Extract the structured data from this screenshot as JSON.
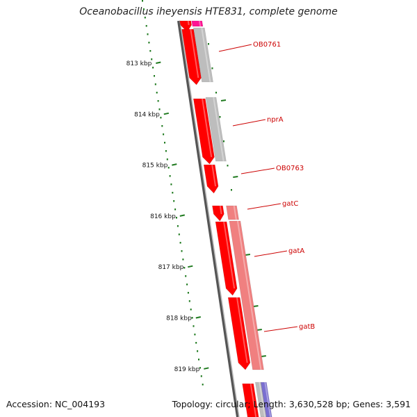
{
  "title": "Oceanobacillus iheyensis HTE831, complete genome",
  "footer": {
    "accession": "Accession: NC_004193",
    "summary": "Topology: circular; Length: 3,630,528 bp; Genes: 3,591"
  },
  "colors": {
    "forward_gene": "#ff0000",
    "forward_gene_dark": "#c00000",
    "gene_grey": "#bdbdbd",
    "gene_pink": "#f08080",
    "gene_magenta": "#ff1493",
    "gene_blue": "#7a6fd0",
    "backbone": "#777777",
    "tick": "#1f7a1f",
    "label": "#cc0000"
  },
  "ticks": [
    {
      "label": "813 kbp"
    },
    {
      "label": "814 kbp"
    },
    {
      "label": "815 kbp"
    },
    {
      "label": "816 kbp"
    },
    {
      "label": "817 kbp"
    },
    {
      "label": "818 kbp"
    },
    {
      "label": "819 kbp"
    }
  ],
  "gene_labels": [
    "OB0761",
    "nprA",
    "OB0763",
    "gatC",
    "gatA",
    "gatB"
  ]
}
